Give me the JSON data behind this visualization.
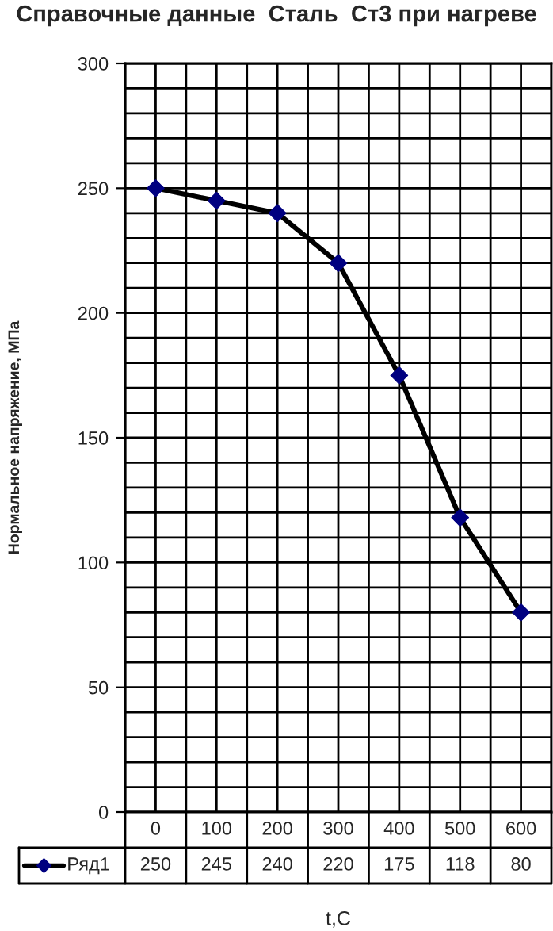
{
  "chart_data": {
    "type": "line",
    "title": "Справочные данные  Сталь  Ст3 при нагреве",
    "xlabel": "t,C",
    "ylabel": "Нормальное напряжение, МПа",
    "categories": [
      "0",
      "100",
      "200",
      "300",
      "400",
      "500",
      "600"
    ],
    "series": [
      {
        "name": "Ряд1",
        "color": "#000080",
        "values": [
          250,
          245,
          240,
          220,
          175,
          118,
          80
        ]
      }
    ],
    "ylim": [
      0,
      300
    ],
    "yticks": [
      0,
      {
        "value": 10,
        "label": null
      },
      {
        "value": 20,
        "label": null
      },
      {
        "value": 30,
        "label": null
      },
      {
        "value": 40,
        "label": null
      },
      50,
      {
        "value": 60,
        "label": null
      },
      {
        "value": 70,
        "label": null
      },
      {
        "value": 80,
        "label": null
      },
      {
        "value": 90,
        "label": null
      },
      100,
      {
        "value": 110,
        "label": null
      },
      {
        "value": 120,
        "label": null
      },
      {
        "value": 130,
        "label": null
      },
      {
        "value": 140,
        "label": null
      },
      150,
      {
        "value": 160,
        "label": null
      },
      {
        "value": 170,
        "label": null
      },
      {
        "value": 180,
        "label": null
      },
      {
        "value": 190,
        "label": null
      },
      200,
      {
        "value": 210,
        "label": null
      },
      {
        "value": 220,
        "label": null
      },
      {
        "value": 230,
        "label": null
      },
      {
        "value": 240,
        "label": null
      },
      250,
      {
        "value": 260,
        "label": null
      },
      {
        "value": 270,
        "label": null
      },
      {
        "value": 280,
        "label": null
      },
      {
        "value": 290,
        "label": null
      },
      300
    ],
    "grid": true,
    "legend": "bottom",
    "marker": "diamond",
    "line_style": "solid",
    "data_labels": true
  }
}
